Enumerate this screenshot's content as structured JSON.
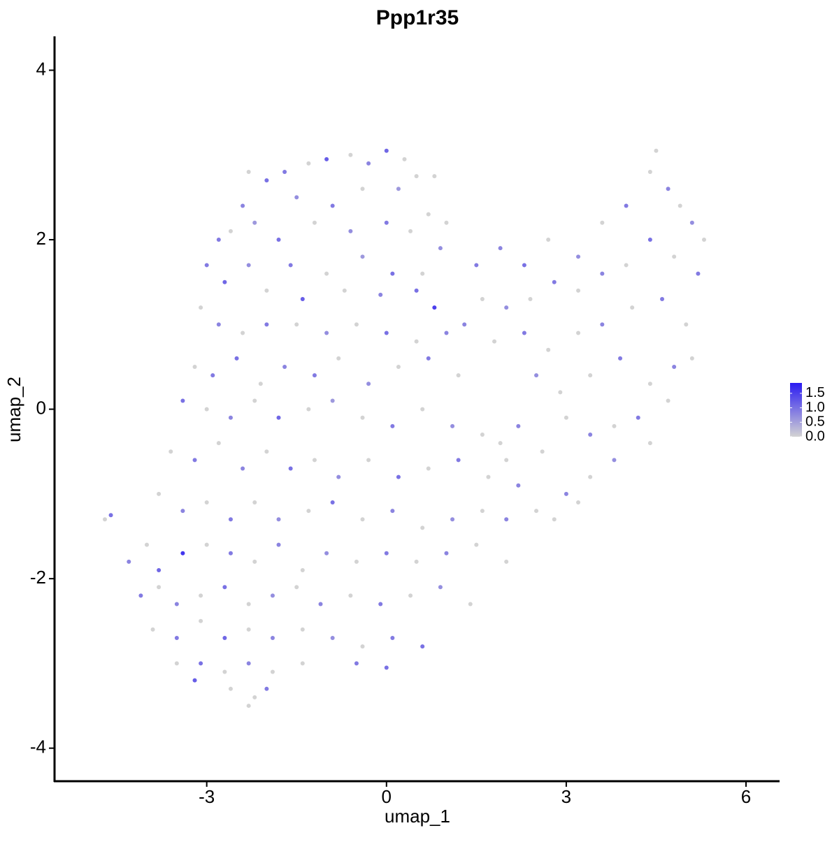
{
  "chart_data": {
    "type": "scatter",
    "title": "Ppp1r35",
    "x_label": "umap_1",
    "y_label": "umap_2",
    "xlim": [
      -5.54,
      6.56
    ],
    "ylim": [
      -4.39,
      4.4
    ],
    "xticks": [
      -3,
      0,
      3,
      6
    ],
    "yticks": [
      -4,
      -2,
      0,
      2,
      4
    ],
    "low_color": "#d3d3d3",
    "high_color": "#2b1cf2",
    "clim": [
      0,
      1.86
    ],
    "cticks": [
      {
        "value": 0,
        "label": "0.0"
      },
      0.5,
      {
        "value": 1,
        "label": "1.0"
      },
      1.5
    ],
    "x": [
      -2.3,
      -2.0,
      -1.7,
      -1.3,
      -1.0,
      -0.6,
      -0.3,
      0,
      0.3,
      0.5,
      0.8,
      -1.5,
      -0.9,
      -0.4,
      0.2,
      0.7,
      -2.4,
      -2.6,
      -2.8,
      -2.2,
      -1.8,
      -1.2,
      -0.6,
      0.0,
      0.4,
      1.0,
      -3.0,
      -2.7,
      -2.3,
      -1.6,
      -1.0,
      -0.4,
      0.1,
      0.6,
      0.9,
      -2.0,
      -1.4,
      -0.7,
      -0.1,
      0.5,
      0.8,
      -3.1,
      -2.8,
      -2.4,
      -2.0,
      -1.5,
      -1.0,
      -0.5,
      0.0,
      0.5,
      1.0,
      -3.2,
      -2.9,
      -2.5,
      -2.1,
      -1.7,
      -1.2,
      -0.8,
      -0.3,
      0.2,
      0.7,
      1.2,
      -3.4,
      -3.0,
      -2.6,
      -2.2,
      -1.8,
      -1.3,
      -0.9,
      -0.4,
      0.1,
      0.6,
      1.1,
      1.6,
      -3.6,
      -3.2,
      -2.8,
      -2.4,
      -2.0,
      -1.6,
      -1.2,
      -0.8,
      -0.3,
      0.2,
      0.7,
      1.2,
      1.7,
      2.2,
      -3.8,
      -3.4,
      -3.0,
      -2.6,
      -2.2,
      -1.8,
      -1.3,
      -0.9,
      -0.4,
      0.1,
      0.6,
      1.1,
      1.6,
      2.0,
      2.5,
      -4.7,
      -4.6,
      -4.3,
      -4.0,
      -3.8,
      -3.4,
      -3.0,
      -2.6,
      -2.2,
      -1.8,
      -1.4,
      -1.0,
      -0.5,
      0.0,
      0.5,
      1.0,
      1.5,
      2.0,
      -4.1,
      -3.8,
      -3.5,
      -3.1,
      -2.7,
      -2.3,
      -1.9,
      -1.5,
      -1.1,
      -0.6,
      -0.1,
      0.4,
      0.9,
      1.4,
      -3.9,
      -3.5,
      -3.1,
      -2.7,
      -2.3,
      -1.9,
      -1.4,
      -0.9,
      -0.4,
      0.1,
      0.6,
      -3.5,
      -3.1,
      -2.7,
      -2.3,
      -1.9,
      -1.4,
      -0.5,
      0.0,
      -2.6,
      -2.2,
      -2.0,
      -2.3,
      -3.2,
      1.5,
      1.9,
      2.3,
      2.7,
      3.2,
      3.6,
      4.0,
      4.4,
      4.5,
      4.7,
      4.9,
      5.1,
      5.3,
      5.2,
      4.8,
      4.4,
      4.0,
      3.6,
      3.2,
      2.8,
      2.4,
      2.0,
      1.6,
      1.3,
      1.8,
      2.3,
      2.7,
      3.2,
      3.6,
      4.1,
      4.6,
      5.0,
      5.1,
      4.8,
      4.4,
      3.9,
      3.4,
      2.9,
      2.5,
      4.7,
      4.2,
      3.8,
      3.4,
      3.0,
      2.6,
      4.4,
      3.8,
      3.4,
      3.0,
      2.8,
      3.2,
      1.9,
      2.2,
      2.0
    ],
    "y": [
      2.8,
      2.7,
      2.8,
      2.9,
      2.95,
      3.0,
      2.9,
      3.05,
      2.95,
      2.75,
      2.75,
      2.5,
      2.4,
      2.6,
      2.6,
      2.3,
      2.4,
      2.1,
      2.0,
      2.2,
      2.0,
      2.2,
      2.1,
      2.2,
      2.1,
      2.2,
      1.7,
      1.5,
      1.7,
      1.7,
      1.6,
      1.8,
      1.6,
      1.6,
      1.9,
      1.4,
      1.3,
      1.4,
      1.35,
      1.4,
      1.2,
      1.2,
      1.0,
      0.9,
      1.0,
      1.0,
      0.9,
      1.0,
      0.9,
      0.8,
      0.9,
      0.5,
      0.4,
      0.6,
      0.3,
      0.5,
      0.4,
      0.6,
      0.3,
      0.5,
      0.6,
      0.4,
      0.1,
      0.0,
      -0.1,
      0.1,
      -0.1,
      0.0,
      0.1,
      -0.1,
      -0.2,
      0.0,
      -0.2,
      -0.3,
      -0.5,
      -0.6,
      -0.4,
      -0.7,
      -0.5,
      -0.7,
      -0.6,
      -0.8,
      -0.6,
      -0.8,
      -0.7,
      -0.6,
      -0.8,
      -0.9,
      -1.0,
      -1.2,
      -1.1,
      -1.3,
      -1.1,
      -1.3,
      -1.2,
      -1.1,
      -1.3,
      -1.2,
      -1.4,
      -1.3,
      -1.2,
      -1.3,
      -1.2,
      -1.3,
      -1.25,
      -1.8,
      -1.6,
      -1.9,
      -1.7,
      -1.6,
      -1.7,
      -1.8,
      -1.6,
      -1.9,
      -1.7,
      -1.8,
      -1.7,
      -1.8,
      -1.7,
      -1.6,
      -1.8,
      -2.2,
      -2.1,
      -2.3,
      -2.2,
      -2.1,
      -2.3,
      -2.2,
      -2.1,
      -2.3,
      -2.2,
      -2.3,
      -2.2,
      -2.1,
      -2.3,
      -2.6,
      -2.7,
      -2.5,
      -2.7,
      -2.6,
      -2.7,
      -2.6,
      -2.7,
      -2.8,
      -2.7,
      -2.8,
      -3.0,
      -3.0,
      -3.1,
      -3.0,
      -3.1,
      -3.0,
      -3.0,
      -3.05,
      -3.3,
      -3.4,
      -3.3,
      -3.5,
      -3.2,
      1.7,
      1.9,
      1.7,
      2.0,
      1.8,
      2.2,
      2.4,
      2.8,
      3.05,
      2.6,
      2.4,
      2.2,
      2.0,
      1.6,
      1.8,
      2.0,
      1.7,
      1.6,
      1.4,
      1.5,
      1.3,
      1.2,
      1.3,
      1.0,
      0.8,
      0.9,
      0.7,
      0.9,
      1.0,
      1.2,
      1.3,
      1.0,
      0.6,
      0.5,
      0.3,
      0.6,
      0.4,
      0.2,
      0.4,
      0.1,
      -0.1,
      -0.2,
      -0.3,
      -0.1,
      -0.5,
      -0.4,
      -0.6,
      -0.8,
      -1.0,
      -1.3,
      -1.1,
      -0.4,
      -0.2,
      -0.6
    ],
    "values": [
      0,
      1.0,
      0.9,
      0,
      1.2,
      0,
      0.8,
      1.1,
      0,
      0,
      0,
      0.7,
      0.9,
      0,
      0.6,
      0,
      0.8,
      0,
      0.9,
      0.6,
      1.0,
      0,
      0.7,
      0.9,
      0,
      0,
      0.9,
      1.1,
      0.7,
      0.9,
      0,
      0.6,
      1.0,
      0,
      0.7,
      0,
      1.2,
      0,
      0.8,
      1.0,
      1.5,
      0,
      0.8,
      0,
      0.9,
      0,
      0.7,
      0,
      1.0,
      0,
      0.8,
      0,
      0.9,
      1.0,
      0,
      0.8,
      0.9,
      0,
      0.7,
      0,
      0.9,
      0,
      1.0,
      0,
      0.8,
      0,
      1.1,
      0,
      0.6,
      0,
      0.9,
      0,
      0.7,
      0,
      0,
      0.9,
      0,
      0.8,
      0,
      1.0,
      0,
      0.7,
      0,
      1.0,
      0,
      0.9,
      0,
      0.8,
      0,
      0.8,
      0,
      0.9,
      0,
      0.7,
      0,
      1.0,
      0,
      0.8,
      0,
      0.7,
      0,
      0.8,
      0,
      0,
      1.0,
      0.8,
      0,
      1.1,
      1.6,
      0,
      0.9,
      0,
      0.8,
      0,
      0.7,
      0,
      0.9,
      0,
      0.8,
      0,
      0,
      0.9,
      0,
      0.8,
      0,
      1.0,
      0,
      0.7,
      0,
      0.8,
      0,
      0.9,
      0,
      0.7,
      0,
      0,
      0.9,
      0,
      1.1,
      0,
      0.8,
      0,
      0.7,
      0,
      0.9,
      1.0,
      0,
      1.0,
      0,
      0.8,
      0,
      0,
      0.9,
      1.0,
      0,
      0,
      0.9,
      0,
      1.2,
      0.9,
      0.8,
      1.0,
      0,
      0.7,
      0,
      0.9,
      0,
      0,
      0.8,
      0,
      0.7,
      0,
      0.9,
      0,
      1.0,
      0,
      0.8,
      0,
      0.9,
      0,
      0.7,
      0,
      0.8,
      0,
      0.9,
      0,
      0,
      0.8,
      0,
      0.9,
      0,
      0,
      0.8,
      0,
      0.9,
      0,
      0,
      0.7,
      0,
      0.9,
      0,
      0.8,
      0,
      0,
      0,
      0.7,
      0,
      0.8,
      0,
      0,
      0,
      0.8,
      0
    ]
  }
}
